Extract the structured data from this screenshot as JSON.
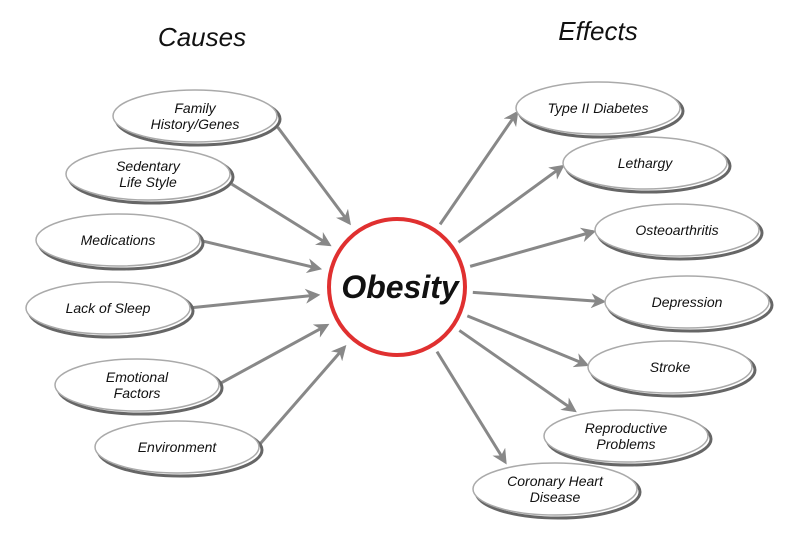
{
  "causes_heading": "Causes",
  "effects_heading": "Effects",
  "center": "Obesity",
  "causes": [
    {
      "label": [
        "Family",
        "History/Genes"
      ]
    },
    {
      "label": [
        "Sedentary",
        "Life Style"
      ]
    },
    {
      "label": [
        "Medications"
      ]
    },
    {
      "label": [
        "Lack of Sleep"
      ]
    },
    {
      "label": [
        "Emotional",
        "Factors"
      ]
    },
    {
      "label": [
        "Environment"
      ]
    }
  ],
  "effects": [
    {
      "label": [
        "Type II Diabetes"
      ]
    },
    {
      "label": [
        "Lethargy"
      ]
    },
    {
      "label": [
        "Osteoarthritis"
      ]
    },
    {
      "label": [
        "Depression"
      ]
    },
    {
      "label": [
        "Stroke"
      ]
    },
    {
      "label": [
        "Reproductive",
        "Problems"
      ]
    },
    {
      "label": [
        "Coronary Heart",
        "Disease"
      ]
    }
  ]
}
